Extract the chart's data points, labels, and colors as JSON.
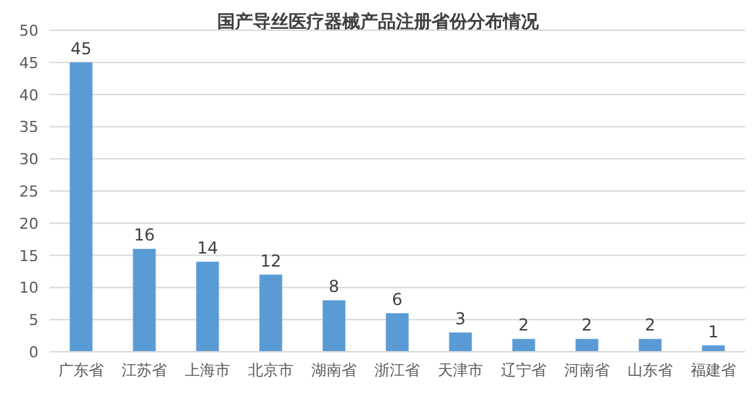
{
  "chart_data": {
    "type": "bar",
    "title": "国产导丝医疗器械产品注册省份分布情况",
    "categories": [
      "广东省",
      "江苏省",
      "上海市",
      "北京市",
      "湖南省",
      "浙江省",
      "天津市",
      "辽宁省",
      "河南省",
      "山东省",
      "福建省"
    ],
    "values": [
      45,
      16,
      14,
      12,
      8,
      6,
      3,
      2,
      2,
      2,
      1
    ],
    "color": "#5b9bd5",
    "ylim": [
      0,
      50
    ],
    "yticks": [
      0,
      5,
      10,
      15,
      20,
      25,
      30,
      35,
      40,
      45,
      50
    ],
    "grid": "y",
    "data_labels": true
  }
}
